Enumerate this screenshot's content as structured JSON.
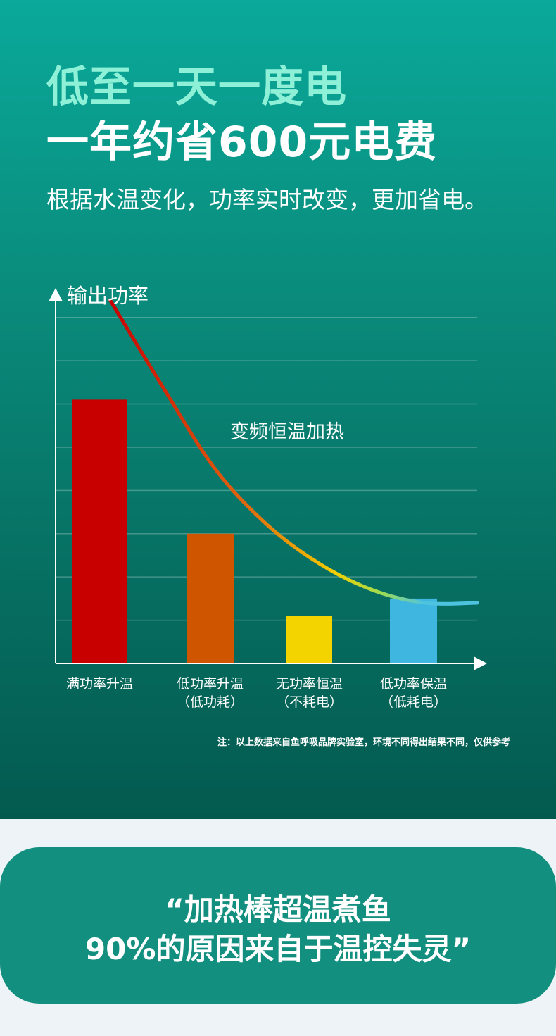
{
  "headline": {
    "line1": "低至一天一度电",
    "line2": "一年约省600元电费",
    "subtitle": "根据水温变化，功率实时改变，更加省电。"
  },
  "chart_data": {
    "type": "bar",
    "ylabel": "输出功率",
    "curve_label": "变频恒温加热",
    "categories": [
      [
        "满功率升温"
      ],
      [
        "低功率升温",
        "（低功耗）"
      ],
      [
        "无功率恒温",
        "（不耗电）"
      ],
      [
        "低功率保温",
        "（低耗电）"
      ]
    ],
    "values": [
      6.1,
      3.0,
      1.1,
      1.5
    ],
    "ylim": [
      0,
      8.5
    ],
    "grid": true,
    "bar_colors": [
      "#c90000",
      "#cf5500",
      "#f4d400",
      "#3fb6df"
    ],
    "curve_colors": [
      "#c80000",
      "#e06a10",
      "#f4d000",
      "#9fdc50",
      "#4ec3e0"
    ],
    "curve_points": [
      {
        "x": 0.5,
        "y": 8.4
      },
      {
        "x": 1.0,
        "y": 6.4
      },
      {
        "x": 1.5,
        "y": 4.5
      },
      {
        "x": 2.0,
        "y": 3.2
      },
      {
        "x": 2.5,
        "y": 2.3
      },
      {
        "x": 3.0,
        "y": 1.7
      },
      {
        "x": 3.5,
        "y": 1.4
      },
      {
        "x": 4.0,
        "y": 1.4
      }
    ]
  },
  "footnote": "注：以上数据来自鱼呼吸品牌实验室，环境不同得出结果不同，仅供参考",
  "quote": {
    "line1": "“加热棒超温煮鱼",
    "line2": "90%的原因来自于温控失灵”"
  },
  "colors": {
    "accent_light": "#8ff0d8",
    "card": "#128f7f"
  }
}
